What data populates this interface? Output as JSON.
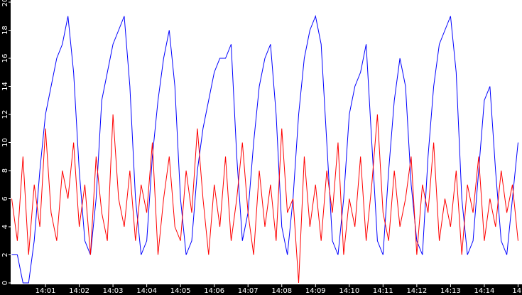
{
  "chart_data": {
    "type": "line",
    "x": [
      0,
      10,
      20,
      30,
      40,
      50,
      60,
      70,
      80,
      90,
      100,
      110,
      120,
      130,
      140,
      150,
      160,
      170,
      180,
      190,
      200,
      210,
      220,
      230,
      240,
      250,
      260,
      270,
      280,
      290,
      300,
      310,
      320,
      330,
      340,
      350,
      360,
      370,
      380,
      390,
      400,
      410,
      420,
      430,
      440,
      450,
      460,
      470,
      480,
      490,
      500,
      510,
      520,
      530,
      540,
      550,
      560,
      570,
      580,
      590,
      600,
      610,
      620,
      630,
      640,
      650,
      660,
      670,
      680,
      690,
      700,
      710,
      720,
      730,
      740,
      750,
      760,
      770,
      780,
      790,
      800,
      810,
      820,
      830,
      840,
      850,
      860,
      870,
      880,
      890,
      900
    ],
    "series": [
      {
        "color": "#0000ff",
        "values": [
          2,
          2,
          0,
          0,
          3,
          8,
          12,
          14,
          16,
          17,
          19,
          15,
          8,
          3,
          2,
          6,
          13,
          15,
          17,
          18,
          19,
          14,
          6,
          2,
          3,
          9,
          13,
          16,
          18,
          14,
          6,
          2,
          3,
          8,
          11,
          13,
          15,
          16,
          16,
          17,
          9,
          3,
          5,
          10,
          14,
          16,
          17,
          12,
          4,
          2,
          6,
          12,
          16,
          18,
          19,
          17,
          10,
          3,
          2,
          6,
          12,
          14,
          15,
          17,
          10,
          3,
          2,
          8,
          13,
          16,
          14,
          7,
          3,
          2,
          9,
          14,
          17,
          18,
          19,
          15,
          6,
          2,
          3,
          8,
          13,
          14,
          8,
          3,
          2,
          6,
          10
        ]
      },
      {
        "color": "#ff0000",
        "values": [
          6,
          3,
          9,
          2,
          7,
          4,
          11,
          5,
          3,
          8,
          6,
          10,
          4,
          7,
          2,
          9,
          5,
          3,
          12,
          6,
          4,
          8,
          3,
          7,
          5,
          10,
          2,
          6,
          9,
          4,
          3,
          8,
          5,
          11,
          6,
          2,
          7,
          4,
          9,
          3,
          6,
          10,
          5,
          2,
          8,
          4,
          7,
          3,
          11,
          5,
          6,
          0,
          9,
          4,
          7,
          3,
          8,
          5,
          10,
          2,
          6,
          4,
          9,
          3,
          7,
          12,
          5,
          3,
          8,
          4,
          6,
          9,
          2,
          7,
          5,
          10,
          3,
          6,
          4,
          8,
          2,
          7,
          5,
          9,
          3,
          6,
          4,
          8,
          5,
          7,
          3
        ]
      }
    ],
    "xlim": [
      0,
      907
    ],
    "xticks": [
      {
        "value": 60,
        "label": "14:01"
      },
      {
        "value": 120,
        "label": "14:02"
      },
      {
        "value": 180,
        "label": "14:03"
      },
      {
        "value": 240,
        "label": "14:04"
      },
      {
        "value": 300,
        "label": "14:05"
      },
      {
        "value": 360,
        "label": "14:06"
      },
      {
        "value": 420,
        "label": "14:07"
      },
      {
        "value": 480,
        "label": "14:08"
      },
      {
        "value": 540,
        "label": "14:09"
      },
      {
        "value": 600,
        "label": "14:10"
      },
      {
        "value": 660,
        "label": "14:11"
      },
      {
        "value": 720,
        "label": "14:12"
      },
      {
        "value": 780,
        "label": "14:13"
      },
      {
        "value": 840,
        "label": "14:14"
      },
      {
        "value": 900,
        "label": "14:"
      }
    ],
    "ylim": [
      0,
      20
    ],
    "yticks": [
      0,
      2,
      4,
      6,
      8,
      10,
      12,
      14,
      16,
      18,
      20
    ]
  }
}
